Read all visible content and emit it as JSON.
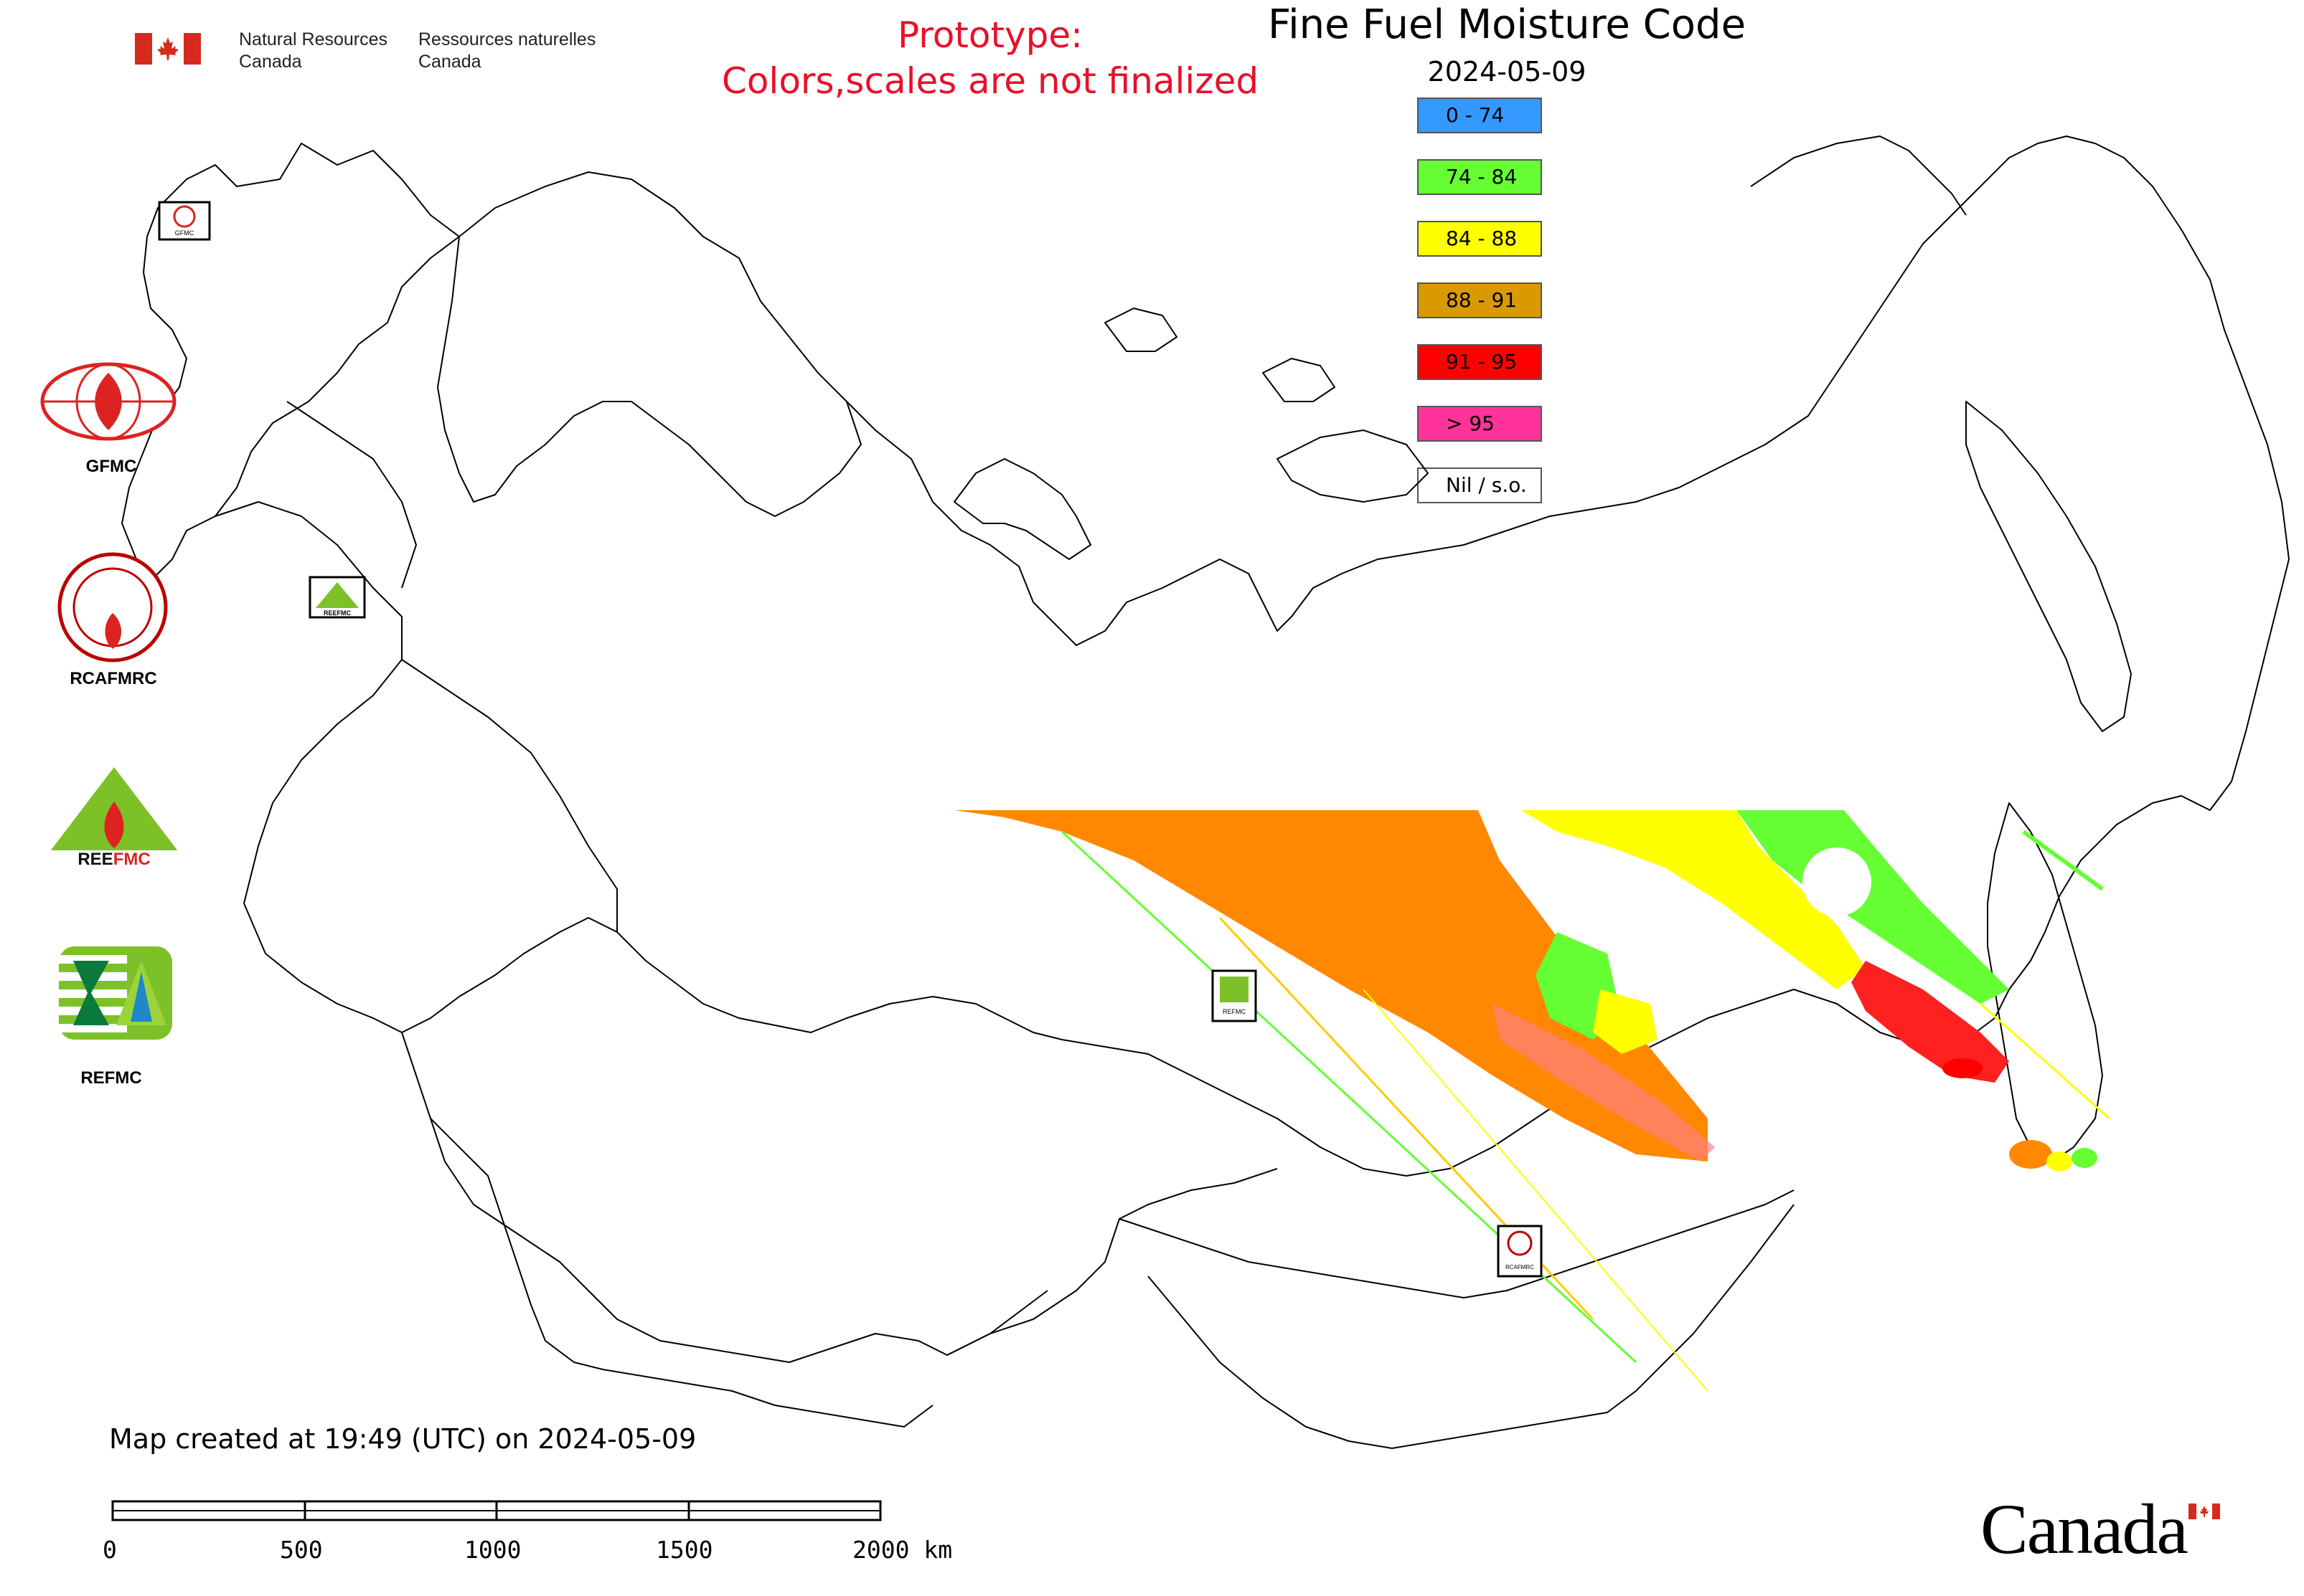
{
  "header": {
    "department_en": "Natural Resources\nCanada",
    "department_fr": "Ressources naturelles\nCanada",
    "prototype_line1": "Prototype:",
    "prototype_line2": "Colors,scales are not finalized"
  },
  "map": {
    "title": "Fine Fuel Moisture Code",
    "date": "2024-05-09",
    "created_text": "Map created at 19:49 (UTC) on 2024-05-09"
  },
  "legend": [
    {
      "label": "0 - 74",
      "color": "#3399ff"
    },
    {
      "label": "74 - 84",
      "color": "#66ff33"
    },
    {
      "label": "84 - 88",
      "color": "#ffff00"
    },
    {
      "label": "88 - 91",
      "color": "#d99a00"
    },
    {
      "label": "91 - 95",
      "color": "#ff0000"
    },
    {
      "label": "> 95",
      "color": "#ff3399"
    },
    {
      "label": "Nil / s.o.",
      "color": "#ffffff"
    }
  ],
  "logos": [
    {
      "name": "GFMC",
      "label": "GFMC"
    },
    {
      "name": "RCAFMRC",
      "label": "RCAFMRC"
    },
    {
      "name": "REEFMC",
      "label": "REEFMC"
    },
    {
      "name": "REFMC",
      "label": "REFMC"
    }
  ],
  "map_markers": [
    {
      "label": "GFMC"
    },
    {
      "label": "REEFMC"
    },
    {
      "label": "REFMC"
    },
    {
      "label": "RCAFMRC"
    }
  ],
  "scale": {
    "labels": [
      "0",
      "500",
      "1000",
      "1500",
      "2000 km"
    ]
  },
  "footer": {
    "wordmark": "Canada"
  },
  "colors": {
    "prototype_text": "#e8102a",
    "flag_red": "#d52b1e",
    "outline": "#000000"
  }
}
